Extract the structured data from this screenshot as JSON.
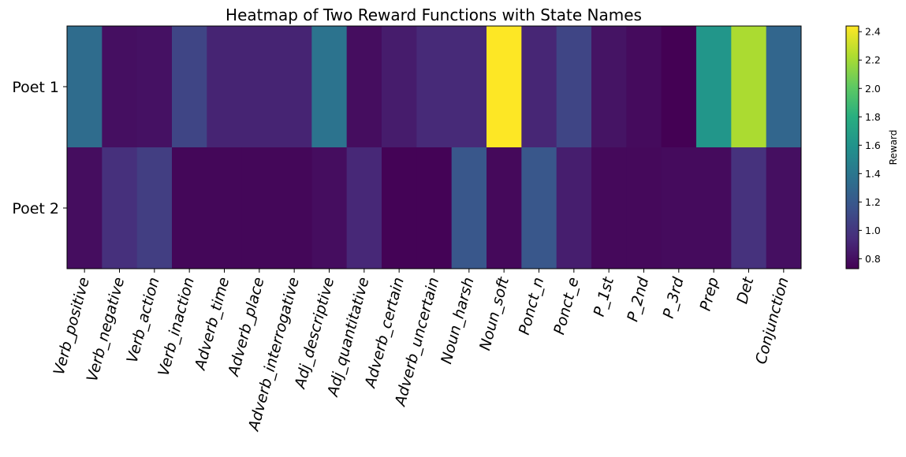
{
  "chart_data": {
    "type": "heatmap",
    "title": "Heatmap of Two Reward Functions with State Names",
    "rows": [
      "Poet 1",
      "Poet 2"
    ],
    "columns": [
      "Verb_positive",
      "Verb_negative",
      "Verb_action",
      "Verb_inaction",
      "Adverb_time",
      "Adverb_place",
      "Adverb_interrogative",
      "Adj_descriptive",
      "Adj_quantitative",
      "Adverb_certain",
      "Adverb_uncertain",
      "Noun_harsh",
      "Noun_soft",
      "Ponct_n",
      "Ponct_e",
      "P_1st",
      "P_2nd",
      "P_3rd",
      "Prep",
      "Det",
      "Conjunction"
    ],
    "values": [
      [
        1.33,
        0.8,
        0.81,
        1.08,
        0.9,
        0.9,
        0.9,
        1.38,
        0.79,
        0.86,
        0.93,
        0.93,
        2.44,
        0.91,
        1.08,
        0.82,
        0.78,
        0.73,
        1.62,
        2.22,
        1.29
      ],
      [
        0.79,
        0.96,
        1.04,
        0.76,
        0.76,
        0.76,
        0.76,
        0.79,
        0.92,
        0.74,
        0.74,
        1.19,
        0.77,
        1.19,
        0.87,
        0.77,
        0.77,
        0.78,
        0.78,
        0.97,
        0.8
      ]
    ],
    "colorbar": {
      "label": "Reward",
      "min": 0.73,
      "max": 2.44,
      "ticks": [
        "0.8",
        "1.0",
        "1.2",
        "1.4",
        "1.6",
        "1.8",
        "2.0",
        "2.2",
        "2.4"
      ],
      "colormap": "viridis"
    }
  }
}
